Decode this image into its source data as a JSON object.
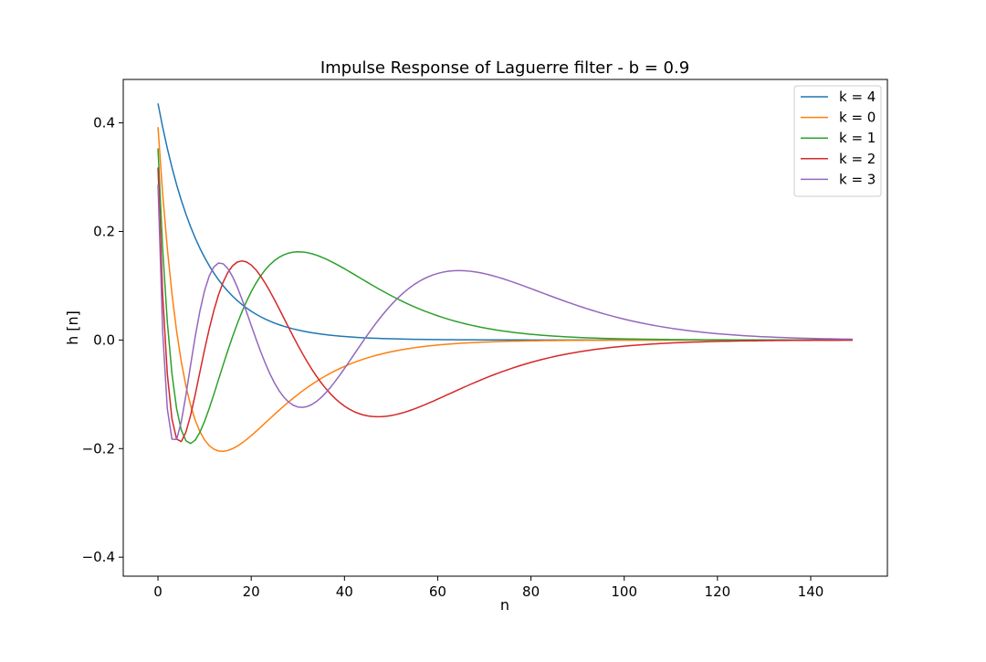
{
  "chart_data": {
    "type": "line",
    "title": "Impulse Response of Laguerre filter - b = 0.9",
    "xlabel": "n",
    "ylabel": "h [n]",
    "xlim": [
      -7.45,
      156.45
    ],
    "ylim": [
      -0.435,
      0.48
    ],
    "x_ticks": [
      0,
      20,
      40,
      60,
      80,
      100,
      120,
      140
    ],
    "x_tick_labels": [
      "0",
      "20",
      "40",
      "60",
      "80",
      "100",
      "120",
      "140"
    ],
    "y_ticks": [
      -0.4,
      -0.2,
      0.0,
      0.2,
      0.4
    ],
    "y_tick_labels": [
      "−0.4",
      "−0.2",
      "0.0",
      "0.2",
      "0.4"
    ],
    "grid": false,
    "legend_position": "top-right",
    "n_start": 0,
    "n_end": 149,
    "laguerre_b": 0.9,
    "series": [
      {
        "name": "k = 4",
        "order": 0,
        "sign": 1,
        "color": "#1f77b4"
      },
      {
        "name": "k = 0",
        "order": 1,
        "sign": -1,
        "color": "#ff7f0e"
      },
      {
        "name": "k = 1",
        "order": 2,
        "sign": 1,
        "color": "#2ca02c"
      },
      {
        "name": "k = 2",
        "order": 3,
        "sign": -1,
        "color": "#d62728"
      },
      {
        "name": "k = 3",
        "order": 4,
        "sign": 1,
        "color": "#9467bd"
      }
    ]
  }
}
